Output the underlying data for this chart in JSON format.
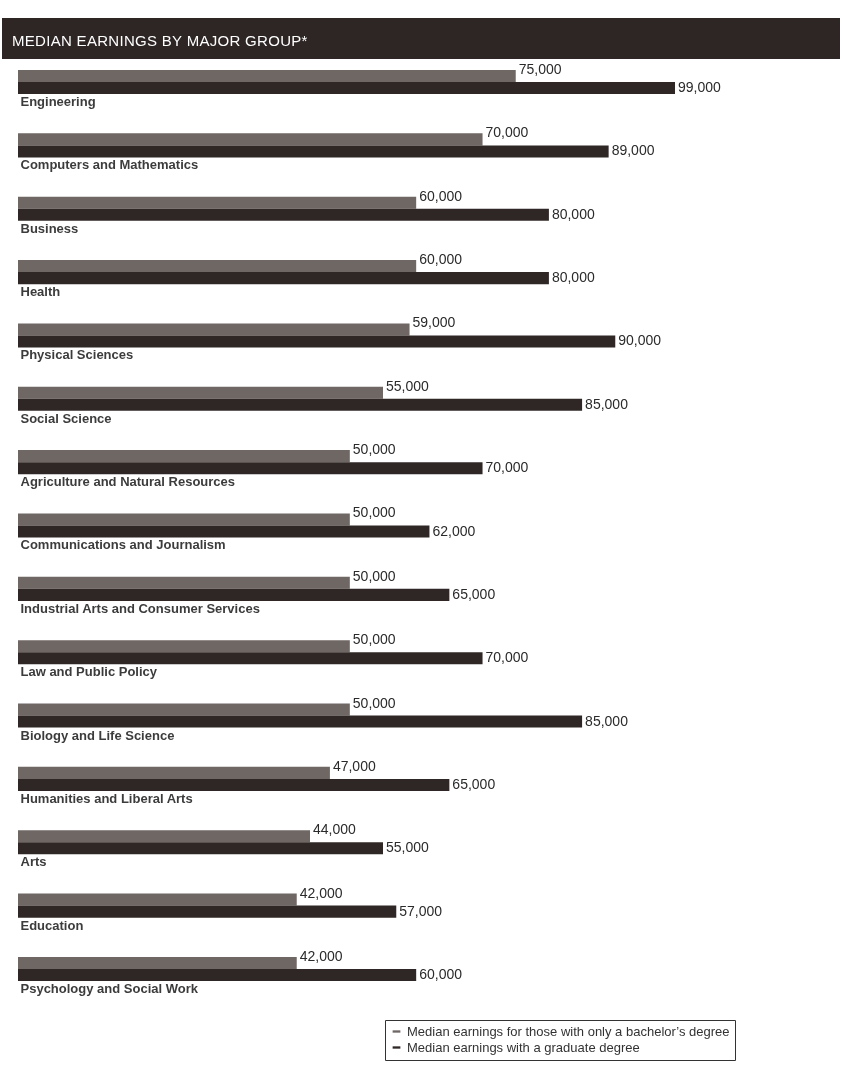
{
  "chart_data": {
    "type": "bar",
    "orientation": "horizontal",
    "title": "MEDIAN EARNINGS BY MAJOR GROUP*",
    "categories": [
      "Engineering",
      "Computers and Mathematics",
      "Business",
      "Health",
      "Physical Sciences",
      "Social Science",
      "Agriculture and Natural Resources",
      "Communications and Journalism",
      "Industrial Arts and Consumer Services",
      "Law and Public Policy",
      "Biology and Life Science",
      "Humanities and Liberal Arts",
      "Arts",
      "Education",
      "Psychology and Social Work"
    ],
    "series": [
      {
        "name": "Median earnings for those with only a bachelor’s degree",
        "color": "#6e6764",
        "values": [
          75000,
          70000,
          60000,
          60000,
          59000,
          55000,
          50000,
          50000,
          50000,
          50000,
          50000,
          47000,
          44000,
          42000,
          42000
        ],
        "value_labels": [
          "75,000",
          "70,000",
          "60,000",
          "60,000",
          "59,000",
          "55,000",
          "50,000",
          "50,000",
          "50,000",
          "50,000",
          "50,000",
          "47,000",
          "44,000",
          "42,000",
          "42,000"
        ]
      },
      {
        "name": "Median earnings with a graduate degree",
        "color": "#2f2725",
        "values": [
          99000,
          89000,
          80000,
          80000,
          90000,
          85000,
          70000,
          62000,
          65000,
          70000,
          85000,
          65000,
          55000,
          57000,
          60000
        ],
        "value_labels": [
          "99,000",
          "89,000",
          "80,000",
          "80,000",
          "90,000",
          "85,000",
          "70,000",
          "62,000",
          "65,000",
          "70,000",
          "85,000",
          "65,000",
          "55,000",
          "57,000",
          "60,000"
        ]
      }
    ],
    "legend": "bottom right",
    "grid": false
  }
}
